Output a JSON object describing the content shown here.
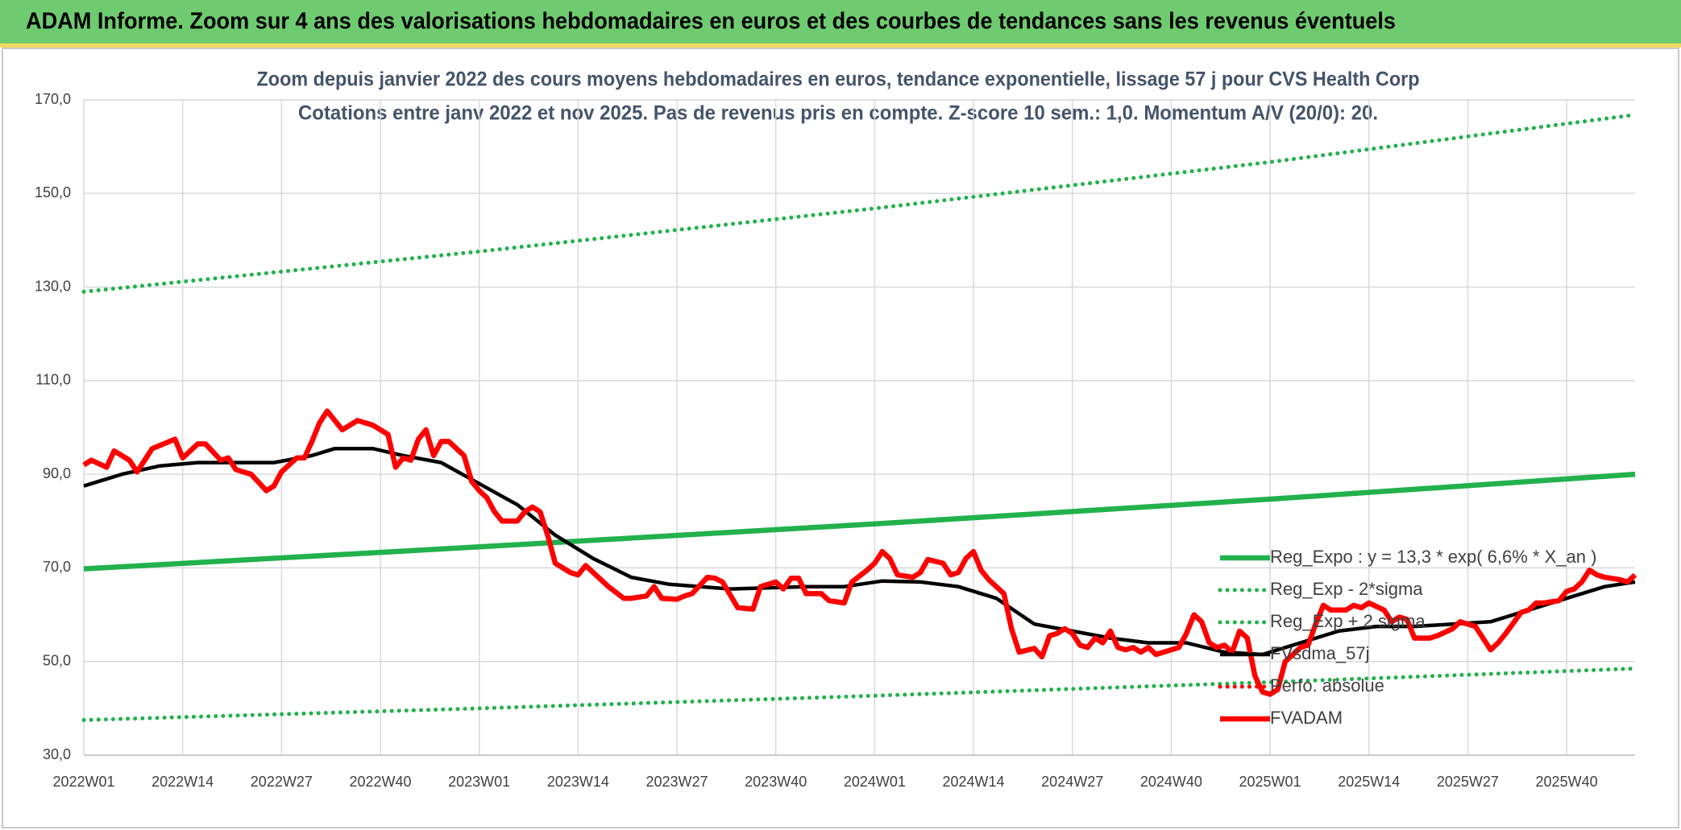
{
  "header": {
    "title": "ADAM Informe. Zoom sur 4 ans des valorisations hebdomadaires en euros et des courbes de tendances sans les revenus éventuels"
  },
  "chart_data": {
    "type": "line",
    "title": "Zoom depuis janvier 2022 des cours moyens hebdomadaires en euros, tendance exponentielle, lissage 57 j pour CVS Health Corp",
    "subtitle": "Cotations entre janv 2022 et nov 2025. Pas de revenus pris en compte. Z-score 10 sem.: 1,0. Momentum A/V (20/0): 20.",
    "xlim": [
      0,
      204
    ],
    "xticks": [
      {
        "value": 0,
        "label": "2022W01"
      },
      {
        "value": 13,
        "label": "2022W14"
      },
      {
        "value": 26,
        "label": "2022W27"
      },
      {
        "value": 39,
        "label": "2022W40"
      },
      {
        "value": 52,
        "label": "2023W01"
      },
      {
        "value": 65,
        "label": "2023W14"
      },
      {
        "value": 78,
        "label": "2023W27"
      },
      {
        "value": 91,
        "label": "2023W40"
      },
      {
        "value": 104,
        "label": "2024W01"
      },
      {
        "value": 117,
        "label": "2024W14"
      },
      {
        "value": 130,
        "label": "2024W27"
      },
      {
        "value": 143,
        "label": "2024W40"
      },
      {
        "value": 156,
        "label": "2025W01"
      },
      {
        "value": 169,
        "label": "2025W14"
      },
      {
        "value": 182,
        "label": "2025W27"
      },
      {
        "value": 195,
        "label": "2025W40"
      }
    ],
    "ylim": [
      30,
      170
    ],
    "yticks": [
      {
        "value": 30,
        "label": "30,0"
      },
      {
        "value": 50,
        "label": "50,0"
      },
      {
        "value": 70,
        "label": "70,0"
      },
      {
        "value": 90,
        "label": "90,0"
      },
      {
        "value": 110,
        "label": "110,0"
      },
      {
        "value": 130,
        "label": "130,0"
      },
      {
        "value": 150,
        "label": "150,0"
      },
      {
        "value": 170,
        "label": "170,0"
      }
    ],
    "grid": true,
    "legend": "lower right",
    "series": [
      {
        "name": "Reg_Expo : y = 13,3 * exp( 6,6% *  X_an )",
        "color": "#22b14c",
        "style": "solid",
        "x": [
          0,
          52,
          104,
          156,
          204
        ],
        "values": [
          69.8,
          74.5,
          79.4,
          84.7,
          90.0
        ]
      },
      {
        "name": "Reg_Exp - 2*sigma",
        "color": "#22b14c",
        "style": "dotted",
        "x": [
          0,
          52,
          104,
          156,
          204
        ],
        "values": [
          37.5,
          40.0,
          42.7,
          45.6,
          48.5
        ]
      },
      {
        "name": "Reg_Exp + 2 sigma",
        "color": "#22b14c",
        "style": "dotted",
        "x": [
          0,
          52,
          104,
          156,
          204
        ],
        "values": [
          129,
          137.6,
          146.8,
          156.7,
          166.8
        ]
      },
      {
        "name": "FVsdma_57j",
        "color": "#000000",
        "style": "solid",
        "x": [
          0,
          5,
          10,
          15,
          20,
          25,
          30,
          33,
          38,
          42,
          47,
          52,
          57,
          62,
          67,
          72,
          77,
          85,
          95,
          100,
          105,
          110,
          115,
          120,
          125,
          130,
          135,
          140,
          145,
          150,
          155,
          160,
          165,
          170,
          175,
          180,
          185,
          190,
          195,
          200,
          204
        ],
        "values": [
          87.5,
          90,
          91.8,
          92.5,
          92.5,
          92.5,
          94,
          95.5,
          95.5,
          94,
          92.5,
          88,
          83.5,
          77,
          72,
          68,
          66.5,
          65.5,
          66,
          66,
          67.2,
          67,
          66,
          63.5,
          58,
          56.5,
          55,
          54,
          54,
          52,
          51.5,
          54,
          56.5,
          57.5,
          57.5,
          58,
          58.5,
          61,
          63.5,
          66,
          67
        ]
      },
      {
        "name": "Perfo. absolue",
        "color": "#ff0000",
        "style": "dotted",
        "x": [],
        "values": []
      },
      {
        "name": "FVADAM",
        "color": "#ff0000",
        "style": "solid",
        "x": [
          0,
          1,
          3,
          4,
          6,
          7,
          9,
          12,
          13,
          15,
          16,
          18,
          19,
          20,
          22,
          24,
          25,
          26,
          28,
          29,
          30,
          31,
          32,
          34,
          36,
          38,
          40,
          41,
          42,
          43,
          44,
          45,
          46,
          47,
          48,
          50,
          51,
          52,
          53,
          54,
          55,
          57,
          58,
          59,
          60,
          61,
          62,
          64,
          65,
          66,
          67,
          69,
          71,
          72,
          74,
          75,
          76,
          78,
          79,
          80,
          82,
          83,
          84,
          86,
          88,
          89,
          91,
          92,
          93,
          94,
          95,
          97,
          98,
          100,
          101,
          103,
          104,
          105,
          106,
          107,
          109,
          110,
          111,
          113,
          114,
          115,
          116,
          117,
          118,
          119,
          121,
          122,
          123,
          125,
          126,
          127,
          128,
          129,
          130,
          131,
          132,
          133,
          134,
          135,
          136,
          137,
          138,
          139,
          140,
          141,
          143,
          144,
          145,
          146,
          147,
          148,
          149,
          150,
          151,
          152,
          153,
          154,
          155,
          156,
          157,
          158,
          160,
          161,
          162,
          163,
          164,
          166,
          167,
          168,
          169,
          171,
          172,
          173,
          174,
          175,
          177,
          178,
          180,
          181,
          183,
          184,
          185,
          186,
          187,
          189,
          190,
          191,
          192,
          194,
          195,
          196,
          197,
          198,
          199,
          200,
          202,
          203,
          204
        ],
        "values": [
          92,
          93,
          91.5,
          95,
          93,
          90.5,
          95.5,
          97.5,
          93.5,
          96.5,
          96.5,
          93,
          93.5,
          91,
          90,
          86.5,
          87.5,
          90.5,
          93.5,
          93.5,
          97,
          101,
          103.5,
          99.5,
          101.5,
          100.5,
          98.5,
          91.5,
          93.5,
          93,
          97.5,
          99.5,
          94,
          97,
          97,
          94,
          88.5,
          86.5,
          85,
          82,
          80,
          80,
          82,
          83,
          82,
          77,
          71,
          69,
          68.5,
          70.5,
          69,
          66,
          63.5,
          63.5,
          64,
          66,
          63.5,
          63.3,
          64,
          64.5,
          68,
          67.8,
          67,
          61.5,
          61.2,
          66,
          67,
          65.5,
          67.8,
          67.8,
          64.5,
          64.5,
          63,
          62.5,
          67,
          69.5,
          71,
          73.5,
          72,
          68.5,
          68,
          69,
          71.8,
          71,
          68.5,
          69,
          72,
          73.5,
          69.5,
          67.5,
          64.5,
          57,
          52,
          52.8,
          51,
          55.5,
          56,
          57,
          56,
          53.5,
          53,
          55,
          54,
          56.5,
          53,
          52.5,
          53,
          52,
          53,
          51.5,
          52.5,
          53,
          56,
          60,
          58.5,
          54,
          53,
          53.5,
          52,
          56.5,
          55,
          47,
          43.5,
          43,
          44,
          50,
          53,
          53.5,
          58,
          62,
          61,
          61,
          62,
          61.5,
          62.5,
          61,
          58.5,
          59.5,
          59,
          55,
          55,
          55.5,
          57,
          58.5,
          57.5,
          55,
          52.5,
          54,
          56,
          60.5,
          61,
          62.5,
          62.5,
          63,
          65,
          65.5,
          67,
          69.5,
          68.5,
          68,
          67.5,
          67,
          68.5
        ]
      }
    ]
  }
}
